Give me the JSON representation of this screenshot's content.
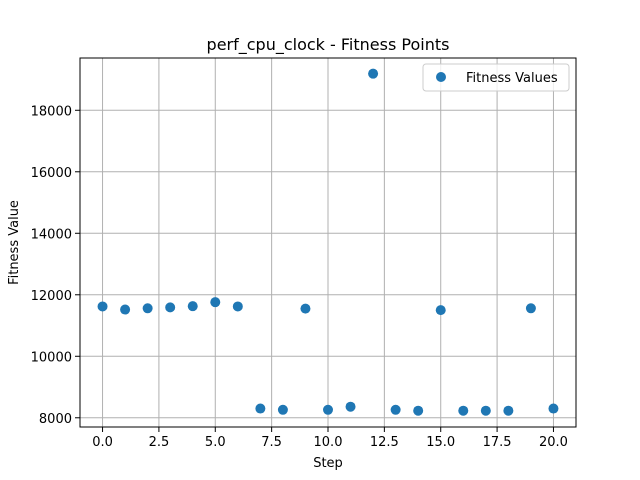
{
  "chart_data": {
    "type": "scatter",
    "title": "perf_cpu_clock - Fitness Points",
    "xlabel": "Step",
    "ylabel": "Fitness Value",
    "xlim": [
      -1,
      21
    ],
    "ylim": [
      7700,
      19700
    ],
    "xticks": [
      0.0,
      2.5,
      5.0,
      7.5,
      10.0,
      12.5,
      15.0,
      17.5,
      20.0
    ],
    "xtick_labels": [
      "0.0",
      "2.5",
      "5.0",
      "7.5",
      "10.0",
      "12.5",
      "15.0",
      "17.5",
      "20.0"
    ],
    "yticks": [
      8000,
      10000,
      12000,
      14000,
      16000,
      18000
    ],
    "ytick_labels": [
      "8000",
      "10000",
      "12000",
      "14000",
      "16000",
      "18000"
    ],
    "grid": true,
    "legend_position": "top-right",
    "series": [
      {
        "name": "Fitness Values",
        "color": "#1f77b4",
        "x": [
          0,
          1,
          2,
          3,
          4,
          5,
          6,
          7,
          8,
          9,
          10,
          11,
          12,
          13,
          14,
          15,
          16,
          17,
          18,
          19,
          20
        ],
        "y": [
          11620,
          11520,
          11560,
          11590,
          11630,
          11760,
          11620,
          8300,
          8260,
          11550,
          8260,
          8360,
          19190,
          8260,
          8230,
          11500,
          8230,
          8230,
          8230,
          11560,
          8300
        ]
      }
    ]
  }
}
